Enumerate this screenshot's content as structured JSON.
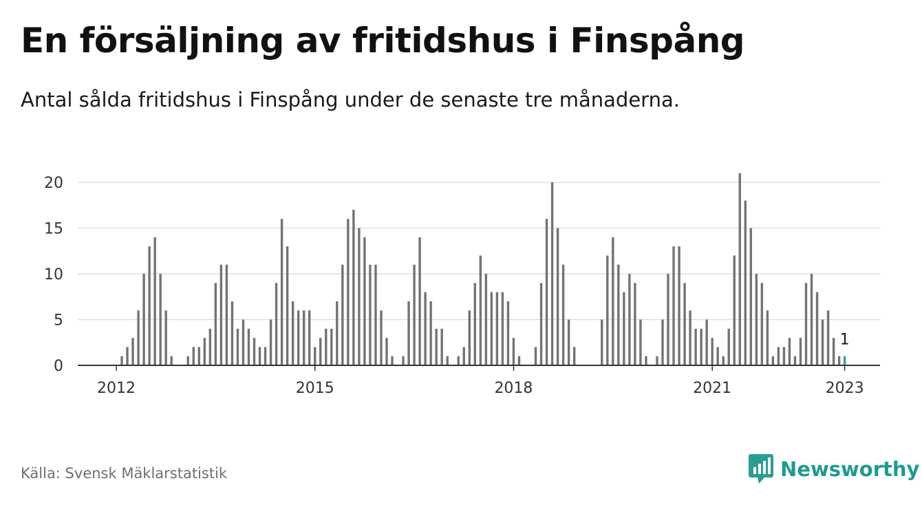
{
  "header": {
    "title": "En försäljning av fritidshus i Finspång",
    "subtitle": "Antal sålda fritidshus i Finspång under de senaste tre månaderna."
  },
  "footer": {
    "source": "Källa: Svensk Mäklarstatistik",
    "brand": "Newsworthy",
    "brand_icon": "newsworthy-logo-icon"
  },
  "colors": {
    "bar": "#737373",
    "highlight": "#2ba39a",
    "grid": "#dddddd",
    "axis": "#333333",
    "brand": "#1f9a93"
  },
  "chart_data": {
    "type": "bar",
    "x_start": "2012-01",
    "x_interval": "month",
    "values": [
      0,
      1,
      2,
      3,
      6,
      10,
      13,
      14,
      10,
      6,
      1,
      0,
      0,
      1,
      2,
      2,
      3,
      4,
      9,
      11,
      11,
      7,
      4,
      5,
      4,
      3,
      2,
      2,
      5,
      9,
      16,
      13,
      7,
      6,
      6,
      6,
      2,
      3,
      4,
      4,
      7,
      11,
      16,
      17,
      15,
      14,
      11,
      11,
      6,
      3,
      1,
      0,
      1,
      7,
      11,
      14,
      8,
      7,
      4,
      4,
      1,
      0,
      1,
      2,
      6,
      9,
      12,
      10,
      8,
      8,
      8,
      7,
      3,
      1,
      0,
      0,
      2,
      9,
      16,
      20,
      15,
      11,
      5,
      2,
      0,
      0,
      0,
      0,
      5,
      12,
      14,
      11,
      8,
      10,
      9,
      5,
      1,
      0,
      1,
      5,
      10,
      13,
      13,
      9,
      6,
      4,
      4,
      5,
      3,
      2,
      1,
      4,
      12,
      21,
      18,
      15,
      10,
      9,
      6,
      1,
      2,
      2,
      3,
      1,
      3,
      9,
      10,
      8,
      5,
      6,
      3,
      1,
      1
    ],
    "highlight_last": true,
    "last_label": "1",
    "ylim": [
      0,
      21
    ],
    "yticks": [
      0,
      5,
      10,
      15,
      20
    ],
    "xticks": [
      {
        "label": "2012",
        "index": 0
      },
      {
        "label": "2015",
        "index": 36
      },
      {
        "label": "2018",
        "index": 72
      },
      {
        "label": "2021",
        "index": 108
      },
      {
        "label": "2023",
        "index": 132
      }
    ],
    "grid": true,
    "legend": "none"
  }
}
